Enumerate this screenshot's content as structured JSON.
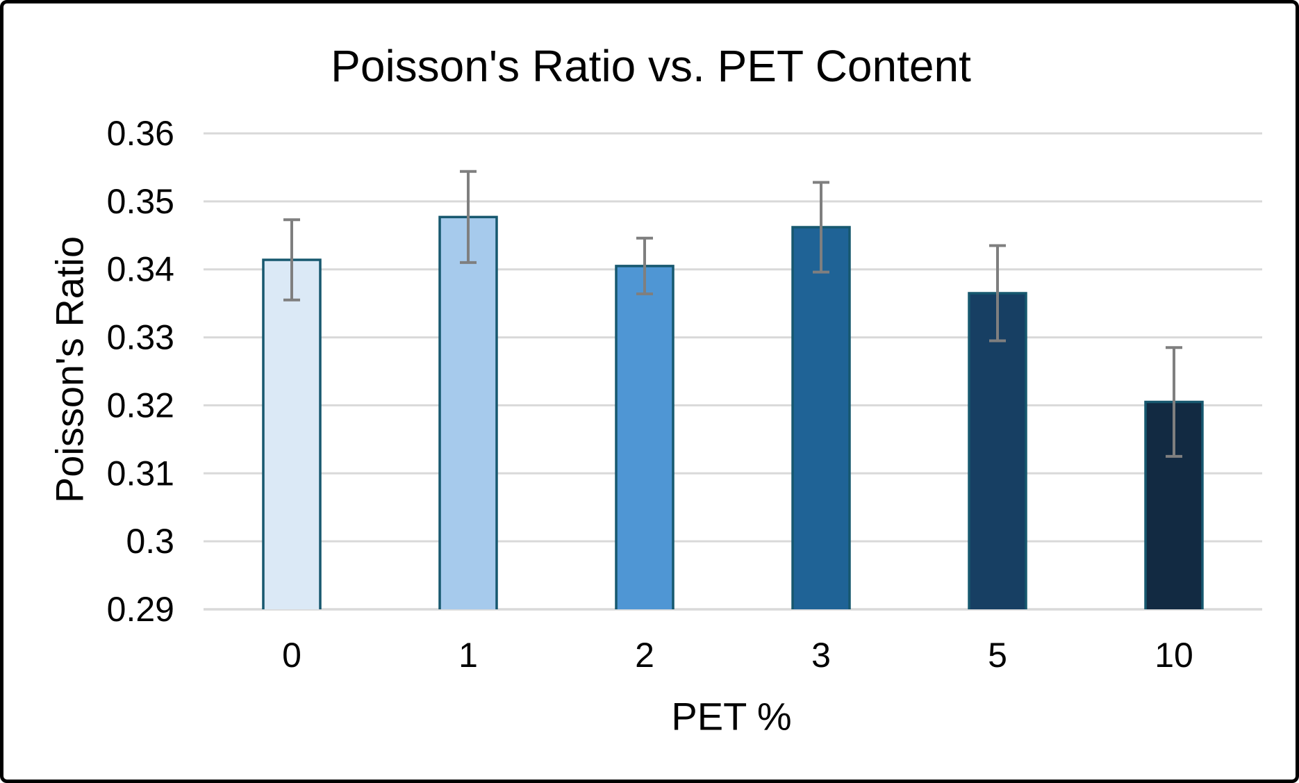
{
  "chart_data": {
    "type": "bar",
    "title": "Poisson's Ratio vs. PET Content",
    "xlabel": "PET %",
    "ylabel": "Poisson's Ratio",
    "categories": [
      "0",
      "1",
      "2",
      "3",
      "5",
      "10"
    ],
    "values": [
      0.3414,
      0.3477,
      0.3405,
      0.3462,
      0.3365,
      0.3205
    ],
    "error_bars": [
      0.0059,
      0.0067,
      0.0041,
      0.0066,
      0.007,
      0.008
    ],
    "ylim": [
      0.29,
      0.36
    ],
    "ytick_labels": [
      "0.36",
      "0.35",
      "0.34",
      "0.33",
      "0.32",
      "0.31",
      "0.3",
      "0.29"
    ],
    "grid": true,
    "legend": false,
    "legend_position": "none",
    "bar_colors": [
      "#DBE9F6",
      "#A6CAEC",
      "#4F96D4",
      "#1F6396",
      "#173F63",
      "#122A42"
    ],
    "bar_border_color": "#17586F",
    "error_bar_color": "#7F7F7F",
    "gridline_color": "#D9D9D9",
    "axis_line_color": "#D9D9D9",
    "text_color": "#000000",
    "background_color": "#FFFFFF",
    "frame_color": "#000000"
  }
}
